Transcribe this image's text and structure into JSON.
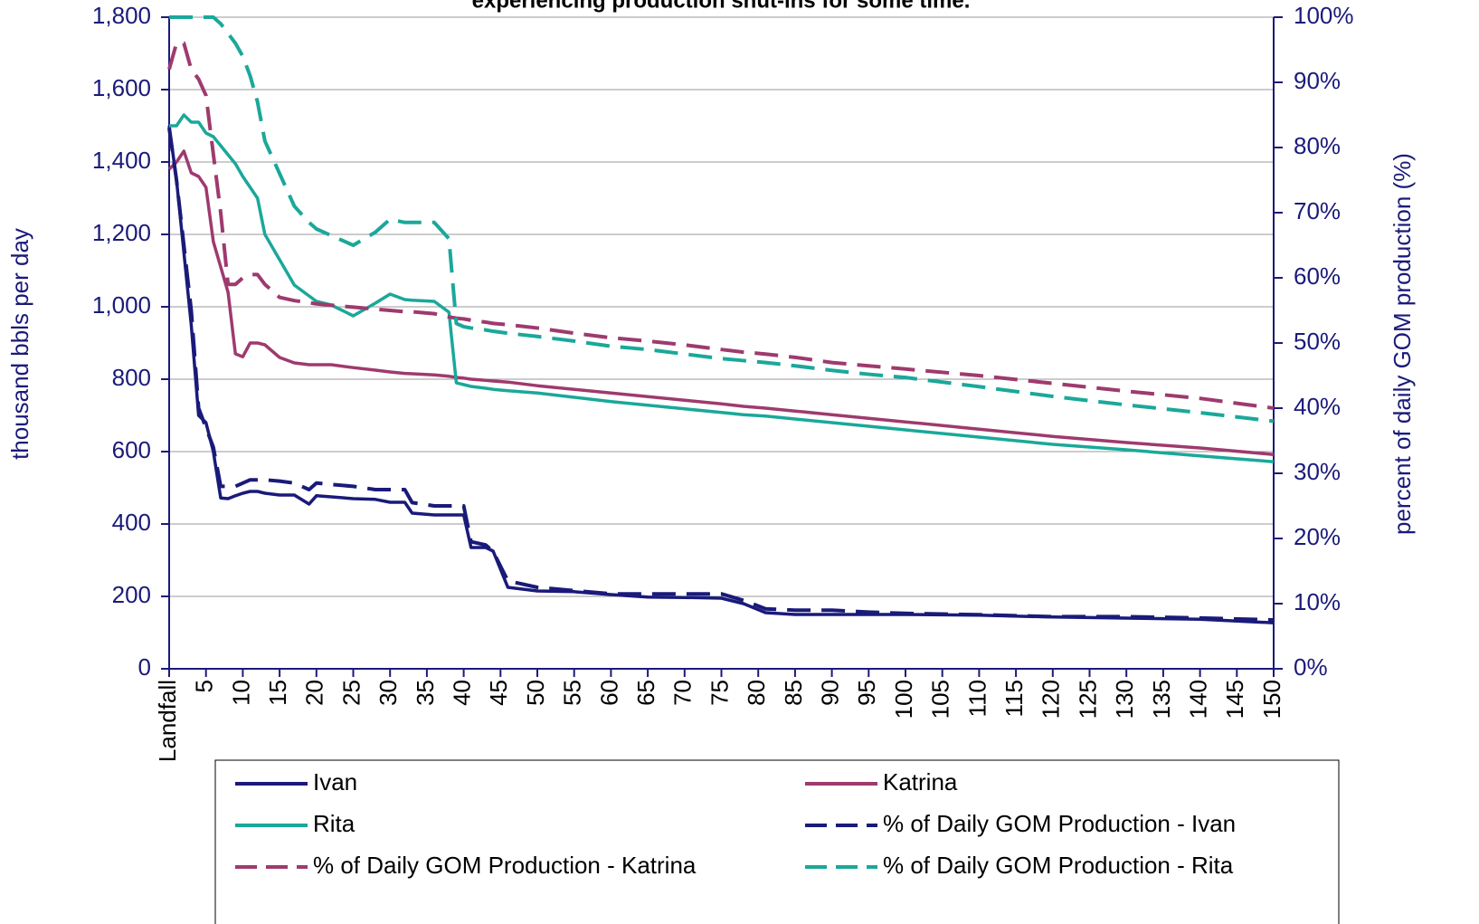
{
  "chart_data": {
    "type": "line",
    "title": "experiencing production shut-ins for some time.",
    "ylabel": "thousand bbls per day",
    "y2label": "percent of daily GOM production (%)",
    "x": [
      0,
      1,
      2,
      3,
      4,
      5,
      6,
      7,
      8,
      9,
      10,
      11,
      12,
      13,
      15,
      17,
      19,
      20,
      22,
      25,
      28,
      30,
      32,
      33,
      36,
      38,
      39,
      40,
      41,
      43,
      44,
      46,
      50,
      55,
      60,
      65,
      70,
      75,
      78,
      81,
      85,
      90,
      95,
      100,
      110,
      120,
      130,
      140,
      150
    ],
    "xlim": [
      0,
      150
    ],
    "xticks": [
      {
        "value": 0,
        "label": "Landfall"
      },
      5,
      10,
      15,
      20,
      25,
      30,
      35,
      40,
      45,
      50,
      55,
      60,
      65,
      70,
      75,
      80,
      85,
      90,
      95,
      100,
      105,
      110,
      115,
      120,
      125,
      130,
      135,
      140,
      145,
      150
    ],
    "ylim": [
      0,
      1800
    ],
    "yticks": [
      0,
      200,
      400,
      600,
      800,
      {
        "value": 1000,
        "label": "1,000"
      },
      {
        "value": 1200,
        "label": "1,200"
      },
      {
        "value": 1400,
        "label": "1,400"
      },
      {
        "value": 1600,
        "label": "1,600"
      },
      {
        "value": 1800,
        "label": "1,800"
      }
    ],
    "y2lim": [
      0,
      100
    ],
    "y2ticks": [
      {
        "value": 0,
        "label": "0%"
      },
      {
        "value": 10,
        "label": "10%"
      },
      {
        "value": 20,
        "label": "20%"
      },
      {
        "value": 30,
        "label": "30%"
      },
      {
        "value": 40,
        "label": "40%"
      },
      {
        "value": 50,
        "label": "50%"
      },
      {
        "value": 60,
        "label": "60%"
      },
      {
        "value": 70,
        "label": "70%"
      },
      {
        "value": 80,
        "label": "80%"
      },
      {
        "value": 90,
        "label": "90%"
      },
      {
        "value": 100,
        "label": "100%"
      }
    ],
    "grid": true,
    "legend": "bottom",
    "series": [
      {
        "name": "Ivan",
        "color": "#1a1a7a",
        "dashed": false,
        "values": [
          1500,
          1350,
          1150,
          950,
          700,
          680,
          600,
          472,
          470,
          478,
          485,
          490,
          490,
          485,
          480,
          480,
          455,
          478,
          475,
          470,
          468,
          460,
          460,
          430,
          425,
          425,
          425,
          425,
          335,
          335,
          325,
          225,
          215,
          213,
          205,
          198,
          197,
          195,
          180,
          155,
          150,
          150,
          150,
          150,
          148,
          143,
          140,
          137,
          127
        ]
      },
      {
        "name": "Katrina",
        "color": "#9e3a6e",
        "dashed": false,
        "values": [
          1380,
          1400,
          1430,
          1370,
          1360,
          1330,
          1180,
          1110,
          1040,
          870,
          862,
          900,
          900,
          895,
          860,
          845,
          840,
          840,
          840,
          832,
          825,
          820,
          816,
          815,
          812,
          808,
          805,
          803,
          800,
          797,
          795,
          792,
          782,
          772,
          762,
          752,
          742,
          732,
          725,
          720,
          712,
          702,
          692,
          682,
          662,
          642,
          625,
          610,
          592
        ]
      },
      {
        "name": "Rita",
        "color": "#1aa89a",
        "dashed": false,
        "values": [
          1500,
          1500,
          1530,
          1510,
          1510,
          1480,
          1470,
          1445,
          1420,
          1395,
          1360,
          1330,
          1300,
          1200,
          1130,
          1060,
          1030,
          1015,
          1005,
          975,
          1010,
          1035,
          1020,
          1018,
          1015,
          985,
          790,
          785,
          780,
          775,
          772,
          768,
          762,
          750,
          738,
          728,
          718,
          708,
          702,
          698,
          690,
          680,
          670,
          660,
          640,
          620,
          605,
          588,
          572
        ]
      },
      {
        "name": "% of Daily GOM Production - Ivan",
        "color": "#1a1a7a",
        "dashed": true,
        "axis": "y2",
        "values": [
          83,
          75,
          65,
          55,
          40,
          37,
          34,
          28,
          28,
          28,
          28.5,
          29,
          29,
          29,
          28.8,
          28.5,
          27.5,
          28.5,
          28.3,
          28,
          27.5,
          27.5,
          27.5,
          25.5,
          25,
          25,
          25,
          25,
          19.5,
          19,
          18,
          13.5,
          12.5,
          12,
          11.5,
          11.5,
          11.5,
          11.5,
          10.5,
          9.2,
          9,
          9,
          8.7,
          8.5,
          8.3,
          8,
          8,
          7.8,
          7.5
        ]
      },
      {
        "name": "% of Daily GOM Production - Katrina",
        "color": "#9e3a6e",
        "dashed": true,
        "axis": "y2",
        "values": [
          92,
          96,
          96,
          92,
          90.5,
          88,
          79,
          70,
          59,
          59,
          60,
          60.5,
          60.5,
          59,
          57,
          56.5,
          56.2,
          56,
          55.8,
          55.5,
          55.2,
          55,
          54.8,
          54.8,
          54.5,
          54,
          53.8,
          53.7,
          53.5,
          53.2,
          53,
          52.8,
          52.3,
          51.5,
          50.8,
          50.3,
          49.7,
          49,
          48.6,
          48.3,
          47.8,
          47,
          46.5,
          46,
          45,
          43.8,
          42.6,
          41.5,
          40
        ]
      },
      {
        "name": "% of Daily GOM Production - Rita",
        "color": "#1aa89a",
        "dashed": true,
        "axis": "y2",
        "values": [
          100,
          100,
          100,
          100,
          100,
          100,
          100,
          99,
          97.5,
          96,
          94,
          91,
          87,
          81,
          76,
          71,
          68.5,
          67.5,
          66.5,
          65,
          67,
          69,
          68.5,
          68.5,
          68.5,
          66,
          53,
          52.5,
          52.3,
          52,
          51.8,
          51.5,
          51,
          50.3,
          49.5,
          49,
          48.3,
          47.6,
          47.3,
          47,
          46.5,
          45.8,
          45.2,
          44.7,
          43.3,
          41.8,
          40.5,
          39.3,
          38
        ]
      }
    ]
  }
}
